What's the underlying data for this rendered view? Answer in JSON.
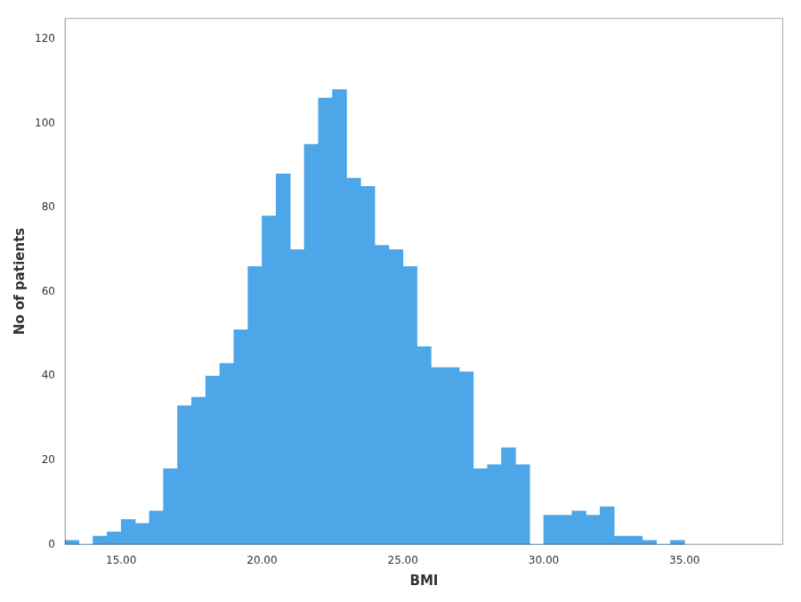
{
  "chart_data": {
    "type": "histogram",
    "xlabel": "BMI",
    "ylabel": "No of patients",
    "bins": [
      13,
      13.5,
      14,
      14.5,
      15,
      15.5,
      16,
      16.5,
      17,
      17.5,
      18,
      18.5,
      19,
      19.5,
      20,
      20.5,
      21,
      21.5,
      22,
      22.5,
      23,
      23.5,
      24,
      24.5,
      25,
      25.5,
      26,
      26.5,
      27,
      27.5,
      28,
      28.5,
      29,
      29.5,
      30,
      30.5,
      31,
      31.5,
      32,
      32.5,
      33,
      33.5,
      34,
      34.5,
      35
    ],
    "values": [
      1,
      0,
      2,
      3,
      6,
      5,
      8,
      18,
      33,
      35,
      40,
      43,
      51,
      66,
      78,
      88,
      70,
      95,
      106,
      108,
      87,
      85,
      71,
      70,
      66,
      47,
      42,
      42,
      41,
      18,
      19,
      23,
      19,
      0,
      7,
      7,
      8,
      7,
      9,
      2,
      2,
      1,
      0,
      1
    ],
    "color": "#4da6e8",
    "xlim": [
      13.0,
      38.5
    ],
    "ylim": [
      0,
      125
    ],
    "xticks": [
      {
        "value": 15,
        "label": "15.00"
      },
      {
        "value": 20,
        "label": "20.00"
      },
      {
        "value": 25,
        "label": "25.00"
      },
      {
        "value": 30,
        "label": "30.00"
      },
      {
        "value": 35,
        "label": "35.00"
      }
    ],
    "yticks": [
      0,
      20,
      40,
      60,
      80,
      100,
      120
    ],
    "grid": false
  }
}
